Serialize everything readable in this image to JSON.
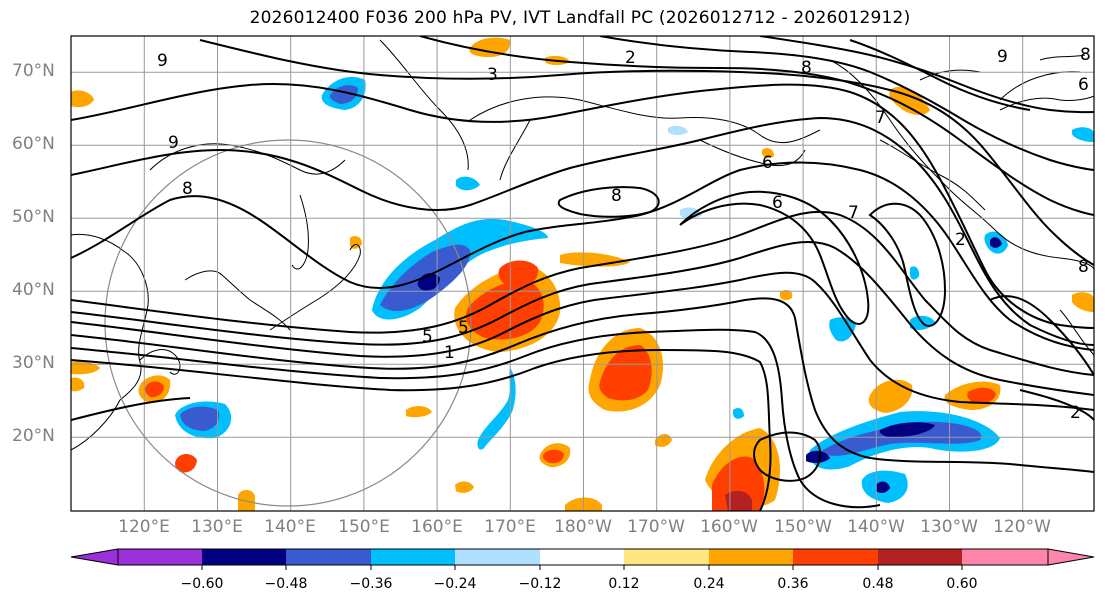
{
  "title": "2026012400 F036 200 hPa PV, IVT Landfall PC (2026012712 - 2026012912)",
  "map": {
    "lat_labels": [
      "70°N",
      "60°N",
      "50°N",
      "40°N",
      "30°N",
      "20°N"
    ],
    "lon_labels": [
      "120°E",
      "130°E",
      "140°E",
      "150°E",
      "160°E",
      "170°E",
      "180°W",
      "170°W",
      "160°W",
      "150°W",
      "140°W",
      "130°W",
      "120°W"
    ],
    "contour_labels": [
      "9",
      "3",
      "2",
      "8",
      "7",
      "6",
      "9",
      "8",
      "5",
      "8",
      "6",
      "7",
      "9",
      "2",
      "8",
      "5",
      "1",
      "8",
      "6",
      "2"
    ]
  },
  "colorbar": {
    "tick_labels": [
      "−0.60",
      "−0.48",
      "−0.36",
      "−0.24",
      "−0.12",
      "0.12",
      "0.24",
      "0.36",
      "0.48",
      "0.60"
    ],
    "colors": [
      "#9b30d9",
      "#000080",
      "#3a5bd0",
      "#00bfff",
      "#b0e0ff",
      "#ffffff",
      "#ffe680",
      "#ffa500",
      "#ff3f00",
      "#b22222",
      "#ff85aa"
    ]
  }
}
